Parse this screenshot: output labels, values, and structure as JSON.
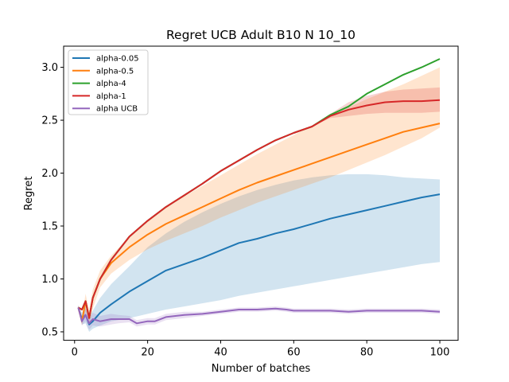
{
  "chart_data": {
    "type": "line",
    "title": "Regret UCB Adult B10 N 10_10",
    "xlabel": "Number of batches",
    "ylabel": "Regret",
    "xlim": [
      -3,
      105
    ],
    "ylim": [
      0.42,
      3.2
    ],
    "xticks": [
      0,
      20,
      40,
      60,
      80,
      100
    ],
    "yticks": [
      0.5,
      1.0,
      1.5,
      2.0,
      2.5,
      3.0
    ],
    "ytick_labels": [
      "0.5",
      "1.0",
      "1.5",
      "2.0",
      "2.5",
      "3.0"
    ],
    "legend_position": "upper left",
    "grid": false,
    "series": [
      {
        "name": "alpha-0.05",
        "color": "#1f77b4",
        "x": [
          1,
          2,
          3,
          4,
          5,
          7,
          10,
          15,
          20,
          25,
          30,
          35,
          40,
          45,
          50,
          55,
          60,
          65,
          70,
          75,
          80,
          85,
          90,
          95,
          100
        ],
        "y": [
          0.73,
          0.62,
          0.66,
          0.57,
          0.6,
          0.68,
          0.76,
          0.88,
          0.98,
          1.08,
          1.14,
          1.2,
          1.27,
          1.34,
          1.38,
          1.43,
          1.47,
          1.52,
          1.57,
          1.61,
          1.65,
          1.69,
          1.73,
          1.77,
          1.8
        ],
        "lower": [
          0.71,
          0.57,
          0.58,
          0.5,
          0.53,
          0.56,
          0.6,
          0.63,
          0.67,
          0.71,
          0.74,
          0.77,
          0.8,
          0.84,
          0.87,
          0.9,
          0.93,
          0.96,
          0.99,
          1.02,
          1.05,
          1.08,
          1.11,
          1.14,
          1.16
        ],
        "upper": [
          0.75,
          0.68,
          0.75,
          0.65,
          0.7,
          0.82,
          0.95,
          1.12,
          1.3,
          1.43,
          1.54,
          1.63,
          1.71,
          1.78,
          1.84,
          1.89,
          1.93,
          1.96,
          1.98,
          1.99,
          1.99,
          1.98,
          1.96,
          1.95,
          1.94
        ]
      },
      {
        "name": "alpha-0.5",
        "color": "#ff7f0e",
        "x": [
          1,
          2,
          3,
          4,
          5,
          7,
          10,
          15,
          20,
          25,
          30,
          35,
          40,
          45,
          50,
          55,
          60,
          65,
          70,
          75,
          80,
          85,
          90,
          95,
          100
        ],
        "y": [
          0.73,
          0.6,
          0.79,
          0.63,
          0.82,
          1.0,
          1.15,
          1.3,
          1.42,
          1.52,
          1.6,
          1.68,
          1.76,
          1.84,
          1.91,
          1.97,
          2.03,
          2.09,
          2.15,
          2.21,
          2.27,
          2.33,
          2.39,
          2.43,
          2.47
        ],
        "lower": [
          0.71,
          0.56,
          0.7,
          0.56,
          0.72,
          0.92,
          1.05,
          1.18,
          1.28,
          1.36,
          1.43,
          1.5,
          1.58,
          1.65,
          1.72,
          1.78,
          1.84,
          1.9,
          1.96,
          2.03,
          2.1,
          2.17,
          2.25,
          2.33,
          2.43
        ],
        "upper": [
          0.75,
          0.64,
          0.86,
          0.7,
          0.9,
          1.08,
          1.22,
          1.4,
          1.55,
          1.67,
          1.78,
          1.88,
          1.98,
          2.08,
          2.18,
          2.27,
          2.36,
          2.45,
          2.54,
          2.62,
          2.7,
          2.77,
          2.84,
          2.92,
          3.0
        ]
      },
      {
        "name": "alpha-4",
        "color": "#2ca02c",
        "x": [
          1,
          2,
          3,
          4,
          5,
          7,
          10,
          15,
          20,
          25,
          30,
          35,
          40,
          45,
          50,
          55,
          60,
          65,
          70,
          75,
          80,
          85,
          90,
          95,
          100
        ],
        "y": [
          0.73,
          0.71,
          0.79,
          0.63,
          0.82,
          1.0,
          1.18,
          1.4,
          1.55,
          1.68,
          1.79,
          1.9,
          2.02,
          2.12,
          2.22,
          2.31,
          2.38,
          2.44,
          2.55,
          2.63,
          2.75,
          2.84,
          2.93,
          3.0,
          3.08
        ]
      },
      {
        "name": "alpha-1",
        "color": "#d62728",
        "x": [
          1,
          2,
          3,
          4,
          5,
          7,
          10,
          15,
          20,
          25,
          30,
          35,
          40,
          45,
          50,
          55,
          60,
          65,
          70,
          75,
          80,
          85,
          90,
          95,
          100
        ],
        "y": [
          0.73,
          0.71,
          0.79,
          0.63,
          0.82,
          1.0,
          1.18,
          1.4,
          1.55,
          1.68,
          1.79,
          1.9,
          2.02,
          2.12,
          2.22,
          2.31,
          2.38,
          2.44,
          2.54,
          2.6,
          2.64,
          2.67,
          2.68,
          2.68,
          2.69
        ],
        "lower": [
          0.73,
          0.71,
          0.79,
          0.63,
          0.82,
          1.0,
          1.18,
          1.4,
          1.55,
          1.68,
          1.79,
          1.9,
          2.02,
          2.12,
          2.22,
          2.31,
          2.38,
          2.44,
          2.52,
          2.54,
          2.56,
          2.57,
          2.57,
          2.57,
          2.58
        ],
        "upper": [
          0.73,
          0.71,
          0.79,
          0.63,
          0.82,
          1.0,
          1.18,
          1.4,
          1.55,
          1.68,
          1.79,
          1.9,
          2.02,
          2.12,
          2.22,
          2.31,
          2.38,
          2.44,
          2.56,
          2.67,
          2.73,
          2.77,
          2.79,
          2.8,
          2.81
        ]
      },
      {
        "name": "alpha UCB",
        "color": "#9467bd",
        "x": [
          1,
          2,
          3,
          4,
          5,
          7,
          10,
          12,
          15,
          17,
          20,
          22,
          25,
          30,
          35,
          40,
          45,
          50,
          55,
          58,
          60,
          65,
          70,
          75,
          80,
          85,
          90,
          95,
          100
        ],
        "y": [
          0.73,
          0.6,
          0.66,
          0.58,
          0.62,
          0.6,
          0.62,
          0.62,
          0.62,
          0.58,
          0.6,
          0.6,
          0.64,
          0.66,
          0.67,
          0.69,
          0.71,
          0.71,
          0.72,
          0.71,
          0.7,
          0.7,
          0.7,
          0.69,
          0.7,
          0.7,
          0.7,
          0.7,
          0.69
        ],
        "lower": [
          0.71,
          0.56,
          0.6,
          0.52,
          0.56,
          0.55,
          0.57,
          0.58,
          0.59,
          0.55,
          0.57,
          0.57,
          0.61,
          0.63,
          0.65,
          0.67,
          0.69,
          0.69,
          0.7,
          0.69,
          0.68,
          0.68,
          0.68,
          0.67,
          0.68,
          0.68,
          0.68,
          0.68,
          0.67
        ],
        "upper": [
          0.75,
          0.64,
          0.72,
          0.64,
          0.68,
          0.65,
          0.67,
          0.66,
          0.65,
          0.61,
          0.63,
          0.63,
          0.67,
          0.69,
          0.69,
          0.71,
          0.73,
          0.73,
          0.74,
          0.73,
          0.72,
          0.72,
          0.72,
          0.71,
          0.72,
          0.72,
          0.72,
          0.72,
          0.71
        ]
      }
    ]
  }
}
